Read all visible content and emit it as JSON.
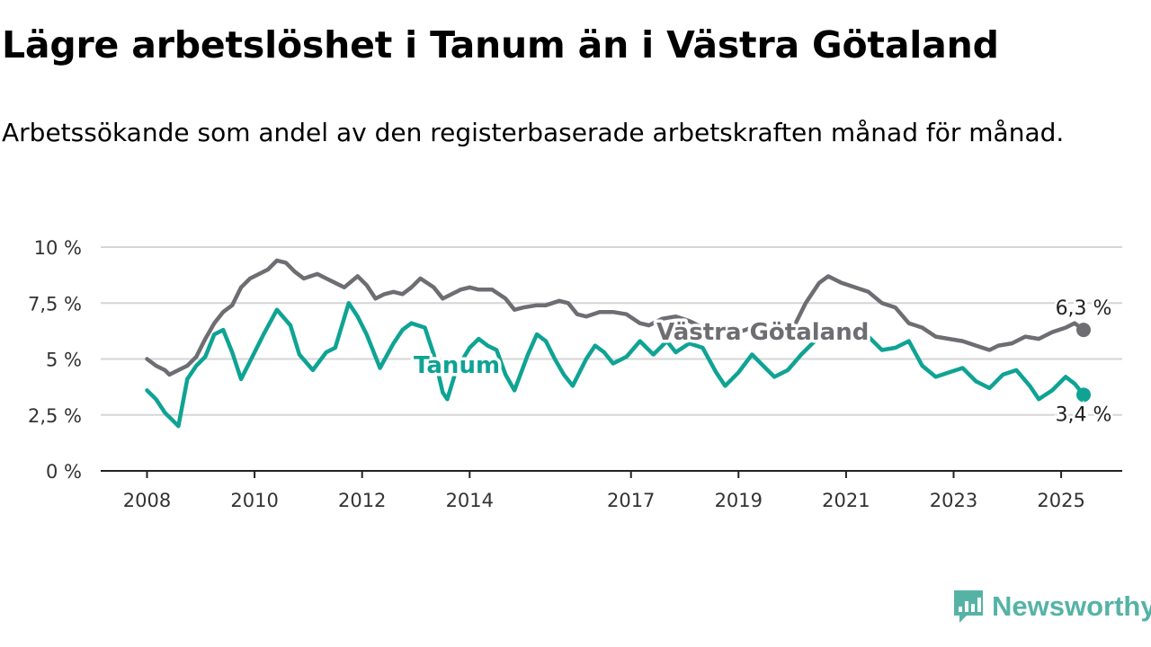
{
  "colors": {
    "tanum": "#0fa394",
    "vg": "#6e6d72",
    "grid": "#d6d6d6",
    "axis": "#222222",
    "logo": "#55b3a6"
  },
  "logo": {
    "text": "Newsworthy",
    "icon": "newsworthy-logo-icon"
  },
  "chart_data": {
    "type": "line",
    "title": "Lägre arbetslöshet i Tanum än i Västra Götaland",
    "subtitle": "Arbetssökande som andel av den registerbaserade arbetskraften månad för månad.",
    "xlabel": "",
    "ylabel": "",
    "ylim": [
      0,
      10
    ],
    "xlim": [
      "2008-01",
      "2025-12"
    ],
    "grid": true,
    "y_ticks": [
      0,
      2.5,
      5,
      7.5,
      10
    ],
    "y_tick_labels": [
      "0 %",
      "2,5 %",
      "5 %",
      "7,5 %",
      "10 %"
    ],
    "x_ticks": [
      "2008",
      "2010",
      "2012",
      "2014",
      "2017",
      "2019",
      "2021",
      "2023",
      "2025"
    ],
    "series": [
      {
        "name": "Västra Götaland",
        "color": "#6e6d72",
        "end_label": "6,3 %",
        "points": [
          [
            "2008-01",
            5.0
          ],
          [
            "2008-03",
            4.7
          ],
          [
            "2008-05",
            4.5
          ],
          [
            "2008-06",
            4.3
          ],
          [
            "2008-08",
            4.5
          ],
          [
            "2008-10",
            4.7
          ],
          [
            "2008-12",
            5.1
          ],
          [
            "2009-02",
            5.9
          ],
          [
            "2009-04",
            6.6
          ],
          [
            "2009-06",
            7.1
          ],
          [
            "2009-08",
            7.4
          ],
          [
            "2009-10",
            8.2
          ],
          [
            "2009-12",
            8.6
          ],
          [
            "2010-02",
            8.8
          ],
          [
            "2010-04",
            9.0
          ],
          [
            "2010-06",
            9.4
          ],
          [
            "2010-08",
            9.3
          ],
          [
            "2010-10",
            8.9
          ],
          [
            "2010-12",
            8.6
          ],
          [
            "2011-03",
            8.8
          ],
          [
            "2011-05",
            8.6
          ],
          [
            "2011-07",
            8.4
          ],
          [
            "2011-09",
            8.2
          ],
          [
            "2011-12",
            8.7
          ],
          [
            "2012-02",
            8.3
          ],
          [
            "2012-04",
            7.7
          ],
          [
            "2012-06",
            7.9
          ],
          [
            "2012-08",
            8.0
          ],
          [
            "2012-10",
            7.9
          ],
          [
            "2012-12",
            8.2
          ],
          [
            "2013-02",
            8.6
          ],
          [
            "2013-05",
            8.2
          ],
          [
            "2013-07",
            7.7
          ],
          [
            "2013-09",
            7.9
          ],
          [
            "2013-11",
            8.1
          ],
          [
            "2014-01",
            8.2
          ],
          [
            "2014-03",
            8.1
          ],
          [
            "2014-06",
            8.1
          ],
          [
            "2014-09",
            7.7
          ],
          [
            "2014-11",
            7.2
          ],
          [
            "2015-01",
            7.3
          ],
          [
            "2015-04",
            7.4
          ],
          [
            "2015-06",
            7.4
          ],
          [
            "2015-09",
            7.6
          ],
          [
            "2015-11",
            7.5
          ],
          [
            "2016-01",
            7.0
          ],
          [
            "2016-03",
            6.9
          ],
          [
            "2016-06",
            7.1
          ],
          [
            "2016-09",
            7.1
          ],
          [
            "2016-12",
            7.0
          ],
          [
            "2017-03",
            6.6
          ],
          [
            "2017-05",
            6.5
          ],
          [
            "2017-08",
            6.8
          ],
          [
            "2017-11",
            6.9
          ],
          [
            "2018-02",
            6.7
          ],
          [
            "2018-05",
            6.4
          ],
          [
            "2018-08",
            6.3
          ],
          [
            "2018-10",
            6.3
          ],
          [
            "2019-01",
            6.2
          ],
          [
            "2019-04",
            6.4
          ],
          [
            "2019-07",
            6.2
          ],
          [
            "2019-10",
            6.1
          ],
          [
            "2020-01",
            6.3
          ],
          [
            "2020-04",
            7.5
          ],
          [
            "2020-07",
            8.4
          ],
          [
            "2020-09",
            8.7
          ],
          [
            "2020-12",
            8.4
          ],
          [
            "2021-03",
            8.2
          ],
          [
            "2021-06",
            8.0
          ],
          [
            "2021-09",
            7.5
          ],
          [
            "2021-12",
            7.3
          ],
          [
            "2022-03",
            6.6
          ],
          [
            "2022-06",
            6.4
          ],
          [
            "2022-09",
            6.0
          ],
          [
            "2022-12",
            5.9
          ],
          [
            "2023-03",
            5.8
          ],
          [
            "2023-06",
            5.6
          ],
          [
            "2023-09",
            5.4
          ],
          [
            "2023-11",
            5.6
          ],
          [
            "2024-02",
            5.7
          ],
          [
            "2024-05",
            6.0
          ],
          [
            "2024-08",
            5.9
          ],
          [
            "2024-11",
            6.2
          ],
          [
            "2025-02",
            6.4
          ],
          [
            "2025-04",
            6.6
          ],
          [
            "2025-06",
            6.3
          ]
        ]
      },
      {
        "name": "Tanum",
        "color": "#0fa394",
        "end_label": "3,4 %",
        "points": [
          [
            "2008-01",
            3.6
          ],
          [
            "2008-03",
            3.2
          ],
          [
            "2008-05",
            2.6
          ],
          [
            "2008-07",
            2.2
          ],
          [
            "2008-08",
            2.0
          ],
          [
            "2008-10",
            4.1
          ],
          [
            "2008-12",
            4.7
          ],
          [
            "2009-02",
            5.1
          ],
          [
            "2009-04",
            6.1
          ],
          [
            "2009-06",
            6.3
          ],
          [
            "2009-08",
            5.3
          ],
          [
            "2009-10",
            4.1
          ],
          [
            "2009-12",
            4.9
          ],
          [
            "2010-03",
            6.1
          ],
          [
            "2010-06",
            7.2
          ],
          [
            "2010-09",
            6.5
          ],
          [
            "2010-11",
            5.2
          ],
          [
            "2011-02",
            4.5
          ],
          [
            "2011-05",
            5.3
          ],
          [
            "2011-07",
            5.5
          ],
          [
            "2011-10",
            7.5
          ],
          [
            "2011-12",
            6.9
          ],
          [
            "2012-02",
            6.1
          ],
          [
            "2012-05",
            4.6
          ],
          [
            "2012-08",
            5.7
          ],
          [
            "2012-10",
            6.3
          ],
          [
            "2012-12",
            6.6
          ],
          [
            "2013-03",
            6.4
          ],
          [
            "2013-05",
            5.2
          ],
          [
            "2013-07",
            3.5
          ],
          [
            "2013-08",
            3.2
          ],
          [
            "2013-10",
            4.5
          ],
          [
            "2014-01",
            5.5
          ],
          [
            "2014-03",
            5.9
          ],
          [
            "2014-05",
            5.6
          ],
          [
            "2014-07",
            5.4
          ],
          [
            "2014-09",
            4.3
          ],
          [
            "2014-11",
            3.6
          ],
          [
            "2015-02",
            5.2
          ],
          [
            "2015-04",
            6.1
          ],
          [
            "2015-06",
            5.8
          ],
          [
            "2015-08",
            5.0
          ],
          [
            "2015-10",
            4.3
          ],
          [
            "2015-12",
            3.8
          ],
          [
            "2016-03",
            5.0
          ],
          [
            "2016-05",
            5.6
          ],
          [
            "2016-07",
            5.3
          ],
          [
            "2016-09",
            4.8
          ],
          [
            "2016-12",
            5.1
          ],
          [
            "2017-03",
            5.8
          ],
          [
            "2017-06",
            5.2
          ],
          [
            "2017-09",
            5.8
          ],
          [
            "2017-11",
            5.3
          ],
          [
            "2018-02",
            5.7
          ],
          [
            "2018-05",
            5.5
          ],
          [
            "2018-08",
            4.4
          ],
          [
            "2018-10",
            3.8
          ],
          [
            "2019-01",
            4.4
          ],
          [
            "2019-04",
            5.2
          ],
          [
            "2019-07",
            4.6
          ],
          [
            "2019-09",
            4.2
          ],
          [
            "2019-12",
            4.5
          ],
          [
            "2020-03",
            5.2
          ],
          [
            "2020-06",
            5.8
          ],
          [
            "2020-09",
            6.0
          ],
          [
            "2021-06",
            6.0
          ],
          [
            "2021-09",
            5.4
          ],
          [
            "2021-12",
            5.5
          ],
          [
            "2022-03",
            5.8
          ],
          [
            "2022-06",
            4.7
          ],
          [
            "2022-09",
            4.2
          ],
          [
            "2022-12",
            4.4
          ],
          [
            "2023-03",
            4.6
          ],
          [
            "2023-06",
            4.0
          ],
          [
            "2023-09",
            3.7
          ],
          [
            "2023-12",
            4.3
          ],
          [
            "2024-03",
            4.5
          ],
          [
            "2024-06",
            3.8
          ],
          [
            "2024-08",
            3.2
          ],
          [
            "2024-11",
            3.6
          ],
          [
            "2025-02",
            4.2
          ],
          [
            "2025-04",
            3.9
          ],
          [
            "2025-06",
            3.4
          ]
        ]
      }
    ]
  }
}
